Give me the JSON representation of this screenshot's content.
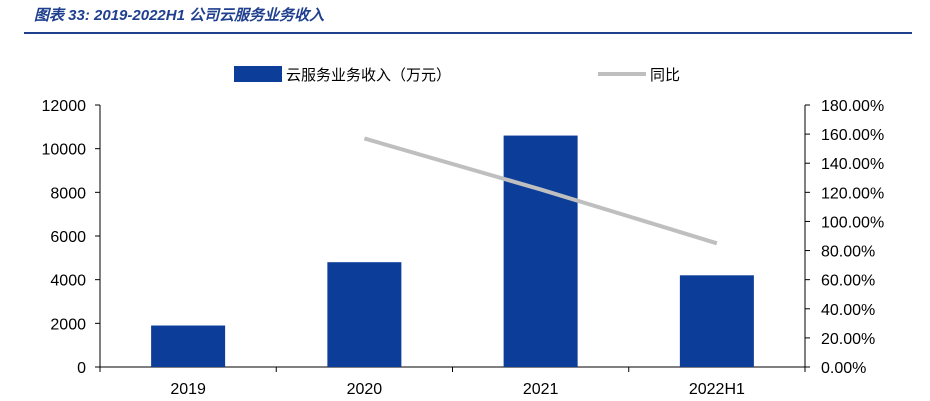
{
  "caption": "图表 33: 2019-2022H1 公司云服务业务收入",
  "colors": {
    "bar": "#0b3d99",
    "line": "#bfbfbf",
    "rule": "#1f3f8f"
  },
  "chart_data": {
    "type": "bar",
    "title": "",
    "categories": [
      "2019",
      "2020",
      "2021",
      "2022H1"
    ],
    "series": [
      {
        "name": "云服务业务收入（万元）",
        "type": "bar",
        "axis": "left",
        "values": [
          1900,
          4800,
          10600,
          4200
        ]
      },
      {
        "name": "同比",
        "type": "line",
        "axis": "right",
        "values": [
          null,
          157,
          122,
          85
        ]
      }
    ],
    "y_left": {
      "min": 0,
      "max": 12000,
      "step": 2000,
      "ticks": [
        "0",
        "2000",
        "4000",
        "6000",
        "8000",
        "10000",
        "12000"
      ]
    },
    "y_right": {
      "min": 0,
      "max": 180,
      "step": 20,
      "ticks": [
        "0.00%",
        "20.00%",
        "40.00%",
        "60.00%",
        "80.00%",
        "100.00%",
        "120.00%",
        "140.00%",
        "160.00%",
        "180.00%"
      ]
    },
    "legend_position": "top",
    "grid": false
  }
}
